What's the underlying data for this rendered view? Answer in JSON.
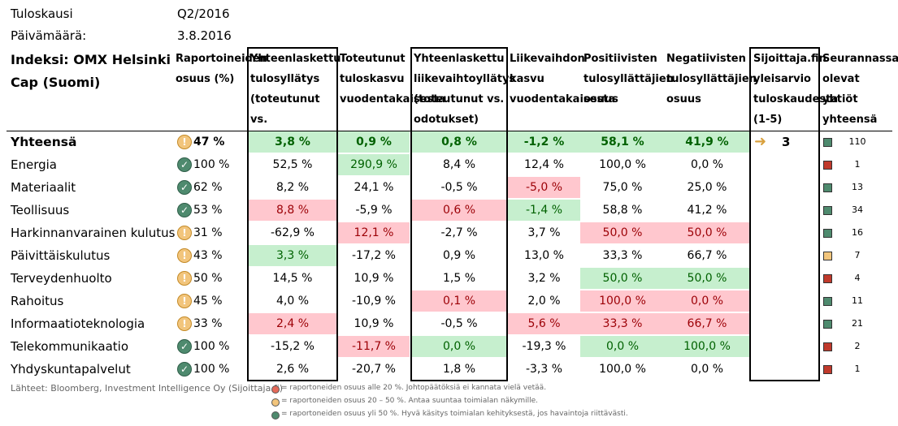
{
  "meta": {
    "period_label": "Tuloskausi",
    "period_value": "Q2/2016",
    "date_label": "Päivämäärä:",
    "date_value": "3.8.2016"
  },
  "chart_data": {
    "type": "table",
    "title": "Indeksi: OMX Helsinki Cap (Suomi)",
    "columns": [
      "Raportoineiden osuus (%)",
      "Yhteenlaskettu tulosyllätys (toteutunut vs. odotukset)",
      "Toteutunut tuloskasvu vuodentakaisesta",
      "Yhteenlaskettu liikevaihtoyllätys (toteutunut vs. odotukset)",
      "Liikevaihdon kasvu vuodentakaisesta",
      "Positiivisten tulosyllättäjien osuus",
      "Negatiivisten tulosyllättäjien osuus",
      "Sijoittaja.fin yleisarvio tuloskaudesta (1-5)",
      "Seurannassa olevat yhtiöt yhteensä"
    ],
    "total": {
      "sector": "Yhteensä",
      "report_status": "warn",
      "reported": "47 %",
      "earnings_surprise": "3,8 %",
      "earnings_growth": "0,9 %",
      "revenue_surprise": "0,8 %",
      "revenue_growth": "-1,2 %",
      "positive_share": "58,1 %",
      "negative_share": "41,9 %",
      "overall_rating": "3",
      "followed_count": "110",
      "followed_status": "green"
    },
    "rows": [
      {
        "sector": "Energia",
        "report_status": "ok",
        "reported": "100 %",
        "earnings_surprise": "52,5 %",
        "earnings_growth": "290,9 %",
        "revenue_surprise": "8,4 %",
        "revenue_growth": "12,4 %",
        "positive_share": "100,0 %",
        "negative_share": "0,0 %",
        "followed_count": "1",
        "followed_status": "red"
      },
      {
        "sector": "Materiaalit",
        "report_status": "ok",
        "reported": "62 %",
        "earnings_surprise": "8,2 %",
        "earnings_growth": "24,1 %",
        "revenue_surprise": "-0,5 %",
        "revenue_growth": "-5,0 %",
        "positive_share": "75,0 %",
        "negative_share": "25,0 %",
        "followed_count": "13",
        "followed_status": "green"
      },
      {
        "sector": "Teollisuus",
        "report_status": "ok",
        "reported": "53 %",
        "earnings_surprise": "8,8 %",
        "earnings_growth": "-5,9 %",
        "revenue_surprise": "0,6 %",
        "revenue_growth": "-1,4 %",
        "positive_share": "58,8 %",
        "negative_share": "41,2 %",
        "followed_count": "34",
        "followed_status": "green"
      },
      {
        "sector": "Harkinnanvarainen kulutus",
        "report_status": "warn",
        "reported": "31 %",
        "earnings_surprise": "-62,9 %",
        "earnings_growth": "12,1 %",
        "revenue_surprise": "-2,7 %",
        "revenue_growth": "3,7 %",
        "positive_share": "50,0 %",
        "negative_share": "50,0 %",
        "followed_count": "16",
        "followed_status": "green"
      },
      {
        "sector": "Päivittäiskulutus",
        "report_status": "warn",
        "reported": "43 %",
        "earnings_surprise": "3,3 %",
        "earnings_growth": "-17,2 %",
        "revenue_surprise": "0,9 %",
        "revenue_growth": "13,0 %",
        "positive_share": "33,3 %",
        "negative_share": "66,7 %",
        "followed_count": "7",
        "followed_status": "orange"
      },
      {
        "sector": "Terveydenhuolto",
        "report_status": "warn",
        "reported": "50 %",
        "earnings_surprise": "14,5 %",
        "earnings_growth": "10,9 %",
        "revenue_surprise": "1,5 %",
        "revenue_growth": "3,2 %",
        "positive_share": "50,0 %",
        "negative_share": "50,0 %",
        "followed_count": "4",
        "followed_status": "red"
      },
      {
        "sector": "Rahoitus",
        "report_status": "warn",
        "reported": "45 %",
        "earnings_surprise": "4,0 %",
        "earnings_growth": "-10,9 %",
        "revenue_surprise": "0,1 %",
        "revenue_growth": "2,0 %",
        "positive_share": "100,0 %",
        "negative_share": "0,0 %",
        "followed_count": "11",
        "followed_status": "green"
      },
      {
        "sector": "Informaatioteknologia",
        "report_status": "warn",
        "reported": "33 %",
        "earnings_surprise": "2,4 %",
        "earnings_growth": "10,9 %",
        "revenue_surprise": "-0,5 %",
        "revenue_growth": "5,6 %",
        "positive_share": "33,3 %",
        "negative_share": "66,7 %",
        "followed_count": "21",
        "followed_status": "green"
      },
      {
        "sector": "Telekommunikaatio",
        "report_status": "ok",
        "reported": "100 %",
        "earnings_surprise": "-15,2 %",
        "earnings_growth": "-11,7 %",
        "revenue_surprise": "0,0 %",
        "revenue_growth": "-19,3 %",
        "positive_share": "0,0 %",
        "negative_share": "100,0 %",
        "followed_count": "2",
        "followed_status": "red"
      },
      {
        "sector": "Yhdyskuntapalvelut",
        "report_status": "ok",
        "reported": "100 %",
        "earnings_surprise": "2,6 %",
        "earnings_growth": "-20,7 %",
        "revenue_surprise": "1,8 %",
        "revenue_growth": "-3,3 %",
        "positive_share": "100,0 %",
        "negative_share": "0,0 %",
        "followed_count": "1",
        "followed_status": "red"
      }
    ],
    "highlights": {
      "pos": [
        "r0c1",
        "r0c2",
        "r0c3",
        "r0c4",
        "r0c5",
        "r0c6",
        "r1c2",
        "r3c4",
        "r5c1",
        "r6c5",
        "r6c6",
        "r9c3",
        "r9c5",
        "r9c6"
      ],
      "neg": [
        "r2c4",
        "r3c1",
        "r3c3",
        "r4c2",
        "r4c5",
        "r4c6",
        "r7c3",
        "r7c5",
        "r7c6",
        "r8c1",
        "r8c4",
        "r8c5",
        "r8c6",
        "r9c2"
      ]
    }
  },
  "colors": {
    "positive_bg": "#c6efce",
    "positive_text": "#006100",
    "negative_bg": "#ffc7ce",
    "negative_text": "#9c0006",
    "status_green": "#4e8a6e",
    "status_orange": "#f2c57c",
    "status_red": "#c0392b"
  },
  "footer": {
    "source": "Lähteet: Bloomberg, Investment Intelligence Oy (Sijoittaja.fi)",
    "legend_red": "= raportoneiden osuus alle 20 %. Johtopäätöksiä ei kannata vielä vetää.",
    "legend_orange": "= raportoneiden osuus 20 – 50 %. Antaa suuntaa toimialan näkymille.",
    "legend_green": "= raportoneiden osuus yli 50 %. Hyvä käsitys toimialan kehityksestä, jos havaintoja riittävästi."
  }
}
